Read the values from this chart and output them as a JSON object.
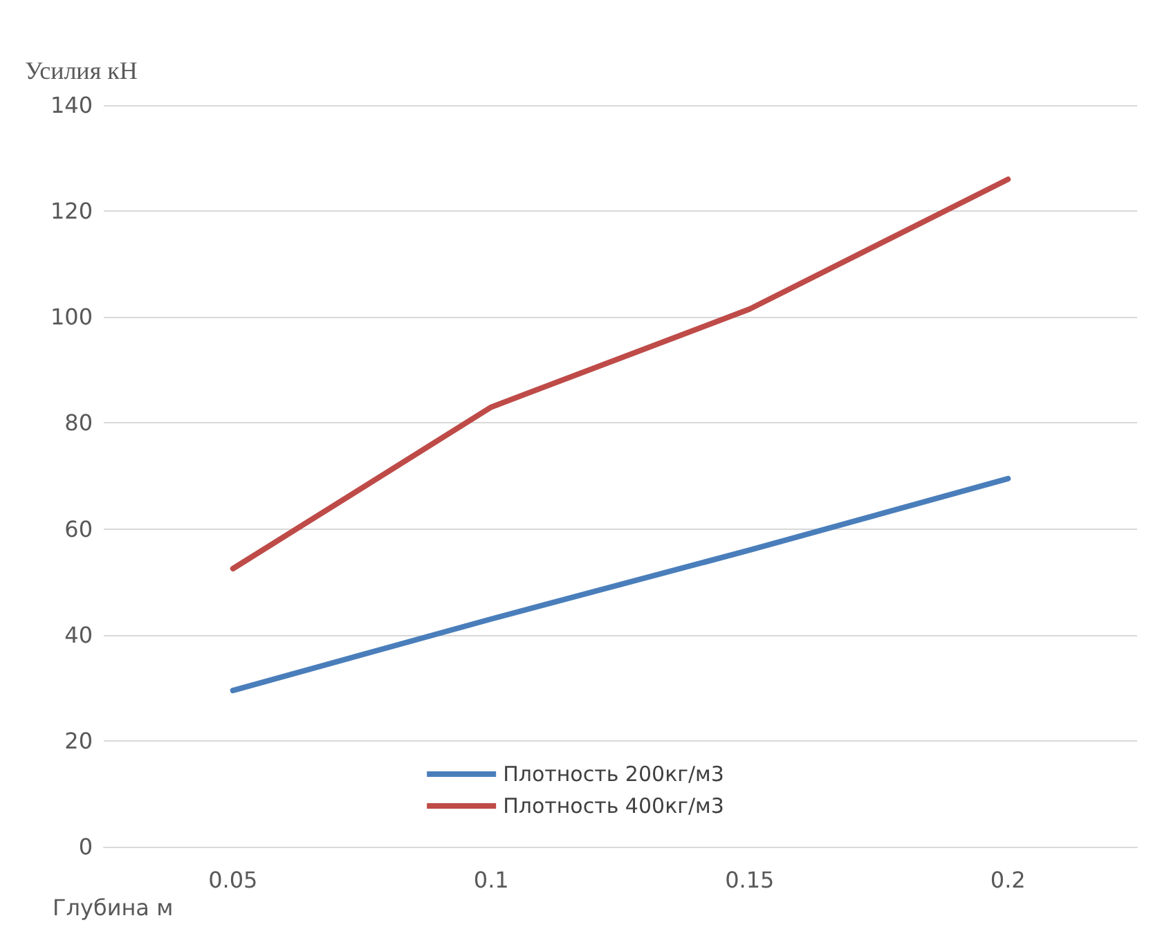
{
  "chart_data": {
    "type": "line",
    "ylabel": "Усилия кН",
    "xlabel": "Глубина м",
    "categories": [
      "0.05",
      "0.1",
      "0.15",
      "0.2"
    ],
    "series": [
      {
        "name": "Плотность 200кг/м3",
        "color": "#4a7ebb",
        "values": [
          29.5,
          43,
          56,
          69.5
        ]
      },
      {
        "name": "Плотность 400кг/м3",
        "color": "#be4b48",
        "values": [
          52.5,
          83,
          101.5,
          126
        ]
      }
    ],
    "ylim": [
      0,
      140
    ],
    "yticks": [
      0,
      20,
      40,
      60,
      80,
      100,
      120,
      140
    ],
    "grid": "y",
    "legend": "bottom",
    "marker": "none",
    "line_style": "solid"
  }
}
